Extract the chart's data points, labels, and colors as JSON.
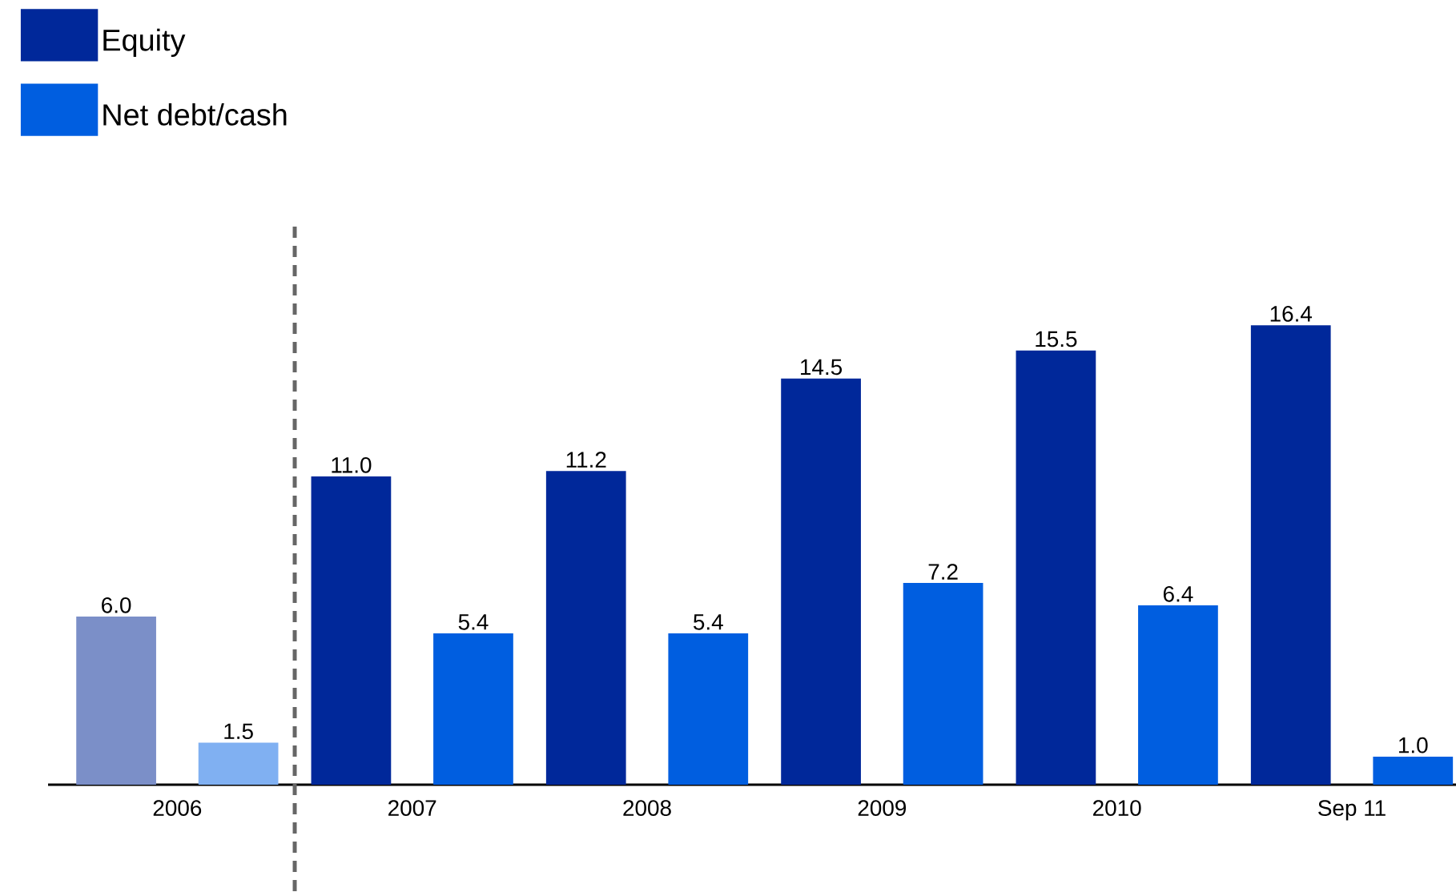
{
  "chart_data": {
    "type": "bar",
    "categories": [
      "2006",
      "2007",
      "2008",
      "2009",
      "2010",
      "Sep 11"
    ],
    "series": [
      {
        "name": "Equity",
        "color": "#00289a",
        "colors": [
          "#7b8fc8",
          "#00289a",
          "#00289a",
          "#00289a",
          "#00289a",
          "#00289a"
        ],
        "values": [
          6.0,
          11.0,
          11.2,
          14.5,
          15.5,
          16.4
        ],
        "value_labels": [
          "6.0",
          "11.0",
          "11.2",
          "14.5",
          "15.5",
          "16.4"
        ]
      },
      {
        "name": "Net debt/cash",
        "color": "#005ee0",
        "colors": [
          "#80b0f2",
          "#005ee0",
          "#005ee0",
          "#005ee0",
          "#005ee0",
          "#005ee0"
        ],
        "values": [
          1.5,
          5.4,
          5.4,
          7.2,
          6.4,
          1.0
        ],
        "value_labels": [
          "1.5",
          "5.4",
          "5.4",
          "7.2",
          "6.4",
          "1.0"
        ]
      }
    ],
    "legend": "top left",
    "tick_labels": "x"
  }
}
